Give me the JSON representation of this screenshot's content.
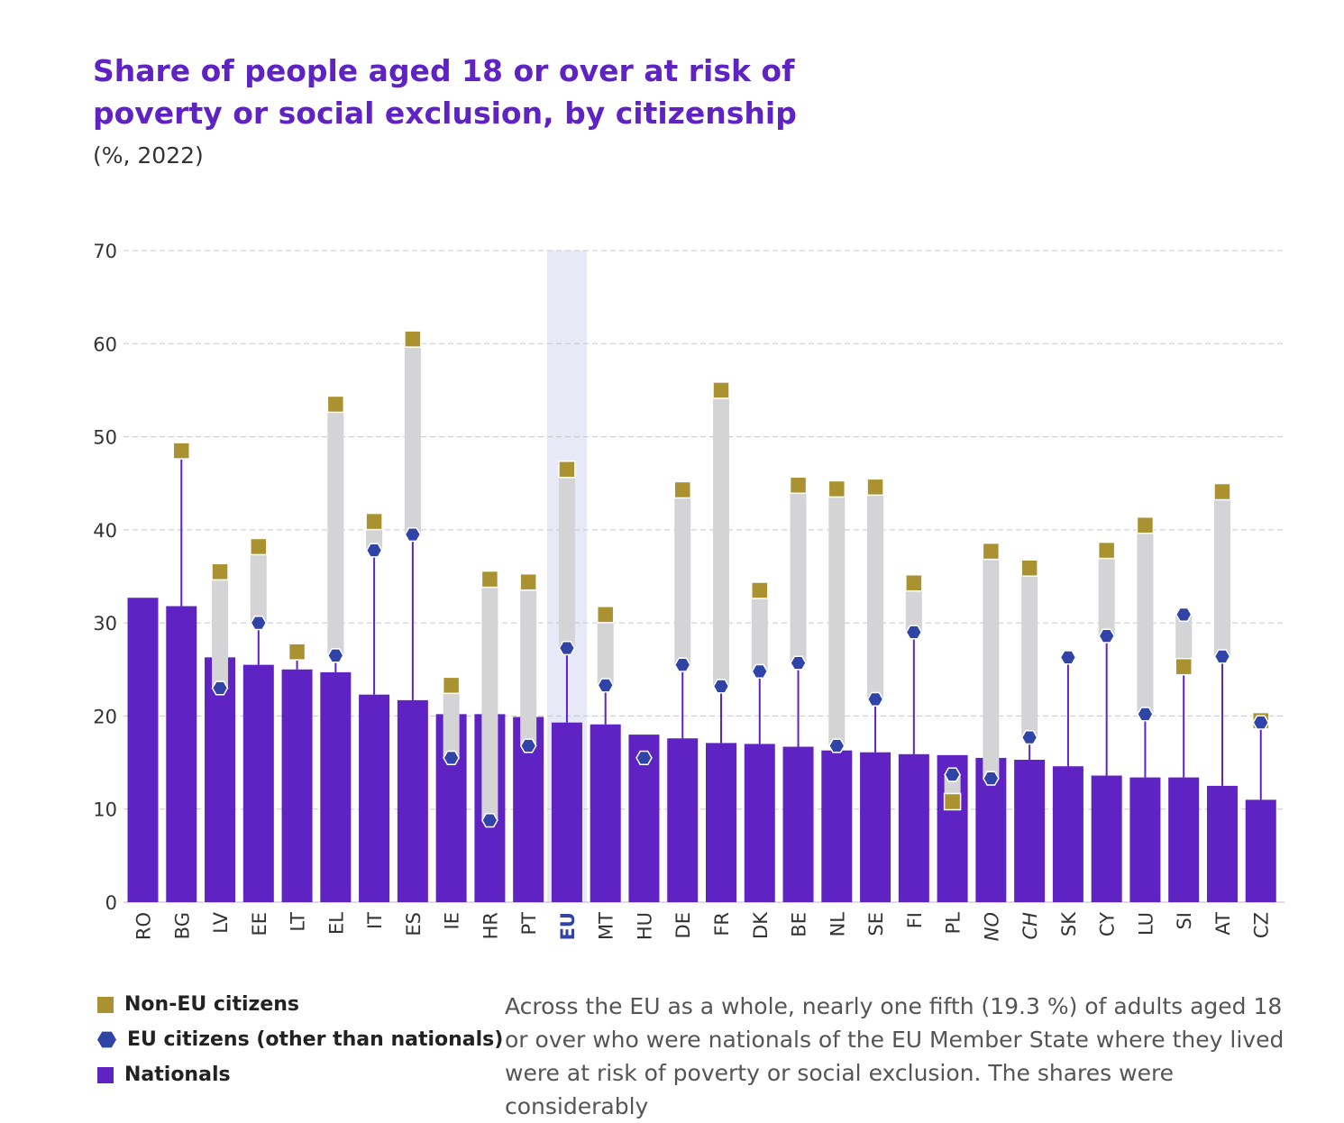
{
  "header": {
    "title": "Share of people aged 18 or over at risk of poverty or social exclusion, by citizenship",
    "subtitle": "(%, 2022)"
  },
  "legend": {
    "non_eu": "Non-EU citizens",
    "eu": "EU citizens (other than nationals)",
    "nationals": "Nationals"
  },
  "note": {
    "text": "Across the EU as a whole, nearly one fifth (19.3 %) of adults aged 18 or over who were nationals of the EU Member State where they lived were at risk of poverty or social exclusion. The shares were considerably"
  },
  "colors": {
    "nationals": "#5f23c4",
    "eu_citizens": "#2f44a6",
    "non_eu_citizens": "#ab9230",
    "range": "#d4d4d7",
    "eu_highlight": "#e8e9f7",
    "title": "#5f23c4"
  },
  "chart_data": {
    "type": "bar",
    "title": "Share of people aged 18 or over at risk of poverty or social exclusion, by citizenship",
    "subtitle": "(%, 2022)",
    "ylim": [
      0,
      70
    ],
    "yticks": [
      0,
      10,
      20,
      30,
      40,
      50,
      60,
      70
    ],
    "grid": true,
    "highlight_category": "EU",
    "italic_categories": [
      "NO",
      "CH"
    ],
    "categories": [
      "RO",
      "BG",
      "LV",
      "EE",
      "LT",
      "EL",
      "IT",
      "ES",
      "IE",
      "HR",
      "PT",
      "EU",
      "MT",
      "HU",
      "DE",
      "FR",
      "DK",
      "BE",
      "NL",
      "SE",
      "FI",
      "PL",
      "NO",
      "CH",
      "SK",
      "CY",
      "LU",
      "SI",
      "AT",
      "CZ"
    ],
    "series": [
      {
        "name": "Nationals",
        "marker": "bar",
        "values": [
          32.7,
          31.8,
          26.3,
          25.5,
          25.0,
          24.7,
          22.3,
          21.7,
          20.2,
          20.2,
          19.9,
          19.3,
          19.1,
          18.0,
          17.6,
          17.1,
          17.0,
          16.7,
          16.3,
          16.1,
          15.9,
          15.8,
          15.5,
          15.3,
          14.6,
          13.6,
          13.4,
          13.4,
          12.5,
          11.0
        ]
      },
      {
        "name": "EU citizens (other than nationals)",
        "marker": "hexagon",
        "values": [
          null,
          null,
          23.0,
          30.0,
          null,
          26.5,
          37.8,
          39.5,
          15.5,
          8.8,
          16.8,
          27.3,
          23.3,
          15.5,
          25.5,
          23.2,
          24.8,
          25.7,
          16.8,
          21.8,
          29.0,
          13.7,
          13.3,
          17.7,
          26.3,
          28.6,
          20.2,
          30.9,
          26.4,
          19.3
        ]
      },
      {
        "name": "Non-EU citizens",
        "marker": "square",
        "values": [
          null,
          48.5,
          35.5,
          38.2,
          26.9,
          53.5,
          40.9,
          60.5,
          23.3,
          34.7,
          34.4,
          46.5,
          30.9,
          null,
          44.3,
          55.0,
          33.5,
          44.8,
          44.4,
          44.6,
          34.3,
          10.8,
          37.7,
          35.9,
          null,
          37.8,
          40.5,
          25.3,
          44.1,
          19.5
        ]
      }
    ]
  }
}
